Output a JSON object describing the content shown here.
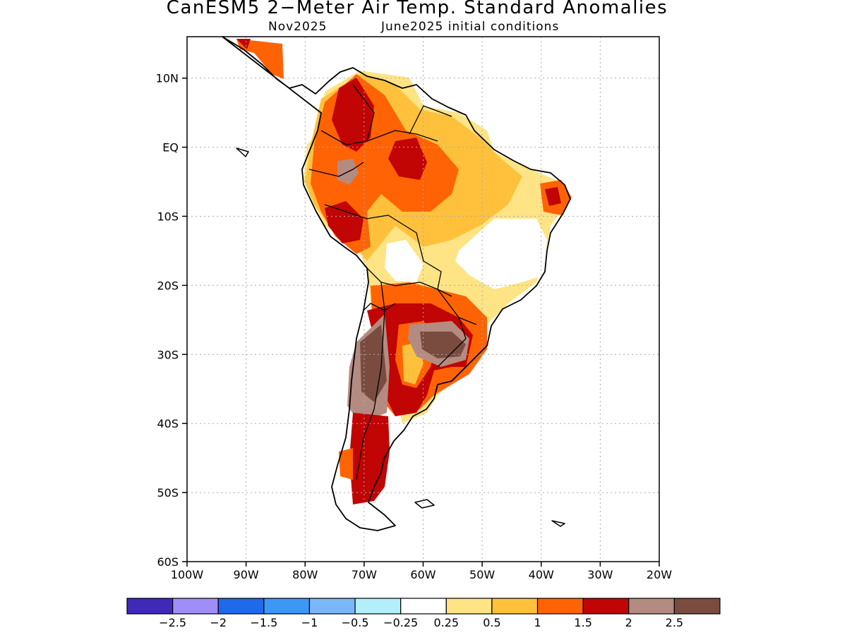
{
  "title": "CanESM5 2−Meter Air Temp. Standard Anomalies",
  "subtitle": {
    "valid_month": "Nov2025",
    "initial_conditions": "June2025 initial conditions"
  },
  "map": {
    "region": "South America",
    "lat_labels": [
      "10N",
      "EQ",
      "10S",
      "20S",
      "30S",
      "40S",
      "50S",
      "60S"
    ],
    "lon_labels": [
      "100W",
      "90W",
      "80W",
      "70W",
      "60W",
      "50W",
      "40W",
      "30W",
      "20W"
    ],
    "lat_values": [
      10,
      0,
      -10,
      -20,
      -30,
      -40,
      -50,
      -60
    ],
    "lon_values": [
      -100,
      -90,
      -80,
      -70,
      -60,
      -50,
      -40,
      -30,
      -20
    ],
    "extent": {
      "lon_min": -100,
      "lon_max": -20,
      "lat_min": -60,
      "lat_max": 16
    },
    "grid": "dotted"
  },
  "colorbar": {
    "colors": [
      "#3f29b9",
      "#9f8ef7",
      "#1f6aeb",
      "#3d98f5",
      "#79b7f8",
      "#b3effa",
      "#ffffff",
      "#fee484",
      "#ffc13c",
      "#ff6304",
      "#c10404",
      "#b48b80",
      "#7a4c40"
    ],
    "tick_labels": [
      "−2.5",
      "−2",
      "−1.5",
      "−1",
      "−0.5",
      "−0.25",
      "0.25",
      "0.5",
      "1",
      "1.5",
      "2",
      "2.5"
    ]
  }
}
